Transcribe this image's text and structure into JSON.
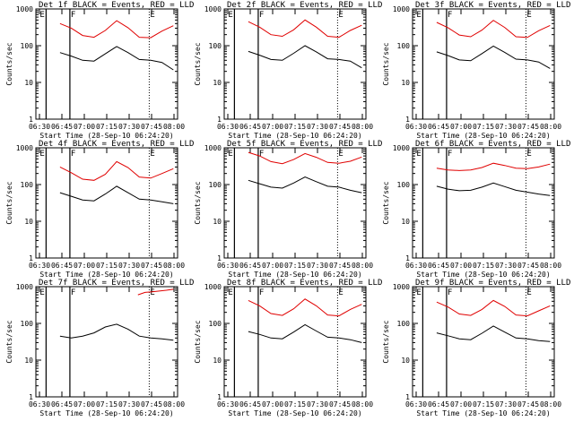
{
  "chart_data": [
    {
      "type": "line",
      "title": "Det 1f BLACK = Events, RED = LLD",
      "xlabel": "Start Time (28-Sep-10 06:24:20)",
      "ylabel": "Counts/sec",
      "x_ticks": [
        "06:30",
        "06:45",
        "07:00",
        "07:15",
        "07:30",
        "07:45",
        "08:00"
      ],
      "y_ticks": [
        "1",
        "10",
        "100",
        "1000"
      ],
      "ylim": [
        1,
        1000
      ],
      "y_scale": "log",
      "markers": [
        {
          "label": "E",
          "position": "left"
        },
        {
          "label": "F",
          "position": "left"
        },
        {
          "label": "E",
          "position": "right"
        }
      ],
      "series": [
        {
          "color": "#e00000",
          "values": [
            400,
            300,
            190,
            170,
            260,
            480,
            310,
            170,
            165,
            250,
            350
          ]
        },
        {
          "color": "#000000",
          "values": [
            65,
            52,
            40,
            38,
            60,
            95,
            65,
            42,
            40,
            35,
            22
          ]
        }
      ]
    },
    {
      "type": "line",
      "title": "Det 2f BLACK = Events, RED = LLD",
      "xlabel": "Start Time (28-Sep-10 06:24:20)",
      "ylabel": "Counts/sec",
      "x_ticks": [
        "06:30",
        "06:45",
        "07:00",
        "07:15",
        "07:30",
        "07:45",
        "08:00"
      ],
      "y_ticks": [
        "1",
        "10",
        "100",
        "1000"
      ],
      "ylim": [
        1,
        1000
      ],
      "y_scale": "log",
      "markers": [
        {
          "label": "E",
          "position": "left"
        },
        {
          "label": "F",
          "position": "left"
        },
        {
          "label": "E",
          "position": "right"
        }
      ],
      "series": [
        {
          "color": "#e00000",
          "values": [
            450,
            320,
            200,
            180,
            270,
            500,
            320,
            180,
            170,
            260,
            360
          ]
        },
        {
          "color": "#000000",
          "values": [
            70,
            55,
            42,
            40,
            62,
            100,
            68,
            44,
            42,
            38,
            25
          ]
        }
      ]
    },
    {
      "type": "line",
      "title": "Det 3f BLACK = Events, RED = LLD",
      "xlabel": "Start Time (28-Sep-10 06:24:20)",
      "ylabel": "Counts/sec",
      "x_ticks": [
        "06:30",
        "06:45",
        "07:00",
        "07:15",
        "07:30",
        "07:45",
        "08:00"
      ],
      "y_ticks": [
        "1",
        "10",
        "100",
        "1000"
      ],
      "ylim": [
        1,
        1000
      ],
      "y_scale": "log",
      "markers": [
        {
          "label": "E",
          "position": "left"
        },
        {
          "label": "F",
          "position": "left"
        },
        {
          "label": "E",
          "position": "right"
        }
      ],
      "series": [
        {
          "color": "#e00000",
          "values": [
            430,
            310,
            195,
            175,
            265,
            490,
            315,
            175,
            168,
            255,
            355
          ]
        },
        {
          "color": "#000000",
          "values": [
            68,
            54,
            41,
            39,
            61,
            98,
            66,
            43,
            41,
            36,
            24
          ]
        }
      ]
    },
    {
      "type": "line",
      "title": "Det 4f BLACK = Events, RED = LLD",
      "xlabel": "Start Time (28-Sep-10 06:24:20)",
      "ylabel": "Counts/sec",
      "x_ticks": [
        "06:30",
        "06:45",
        "07:00",
        "07:15",
        "07:30",
        "07:45",
        "08:00"
      ],
      "y_ticks": [
        "1",
        "10",
        "100",
        "1000"
      ],
      "ylim": [
        1,
        1000
      ],
      "y_scale": "log",
      "markers": [
        {
          "label": "E",
          "position": "left"
        },
        {
          "label": "F",
          "position": "left"
        },
        {
          "label": "E",
          "position": "right"
        }
      ],
      "series": [
        {
          "color": "#e00000",
          "values": [
            300,
            210,
            140,
            130,
            190,
            420,
            290,
            160,
            150,
            200,
            270
          ]
        },
        {
          "color": "#000000",
          "values": [
            60,
            48,
            38,
            36,
            55,
            90,
            60,
            40,
            38,
            34,
            30
          ]
        }
      ]
    },
    {
      "type": "line",
      "title": "Det 5f BLACK = Events, RED = LLD",
      "xlabel": "Start Time (28-Sep-10 06:24:20)",
      "ylabel": "Counts/sec",
      "x_ticks": [
        "06:30",
        "06:45",
        "07:00",
        "07:15",
        "07:30",
        "07:45",
        "08:00"
      ],
      "y_ticks": [
        "1",
        "10",
        "100",
        "1000"
      ],
      "ylim": [
        1,
        1000
      ],
      "y_scale": "log",
      "markers": [
        {
          "label": "E",
          "position": "left"
        },
        {
          "label": "F",
          "position": "left"
        },
        {
          "label": "E",
          "position": "right"
        }
      ],
      "series": [
        {
          "color": "#e00000",
          "values": [
            750,
            600,
            420,
            370,
            480,
            700,
            550,
            400,
            380,
            430,
            560
          ]
        },
        {
          "color": "#000000",
          "values": [
            130,
            105,
            85,
            80,
            110,
            160,
            120,
            90,
            85,
            70,
            60
          ]
        }
      ]
    },
    {
      "type": "line",
      "title": "Det 6f BLACK = Events, RED = LLD",
      "xlabel": "Start Time (28-Sep-10 06:24:20)",
      "ylabel": "Counts/sec",
      "x_ticks": [
        "06:30",
        "06:45",
        "07:00",
        "07:15",
        "07:30",
        "07:45",
        "08:00"
      ],
      "y_ticks": [
        "1",
        "10",
        "100",
        "1000"
      ],
      "ylim": [
        1,
        1000
      ],
      "y_scale": "log",
      "markers": [
        {
          "label": "E",
          "position": "left"
        },
        {
          "label": "F",
          "position": "left"
        },
        {
          "label": "E",
          "position": "right"
        }
      ],
      "series": [
        {
          "color": "#e00000",
          "values": [
            280,
            250,
            240,
            250,
            290,
            380,
            330,
            280,
            270,
            300,
            360
          ]
        },
        {
          "color": "#000000",
          "values": [
            90,
            75,
            68,
            70,
            85,
            110,
            88,
            70,
            62,
            55,
            50
          ]
        }
      ]
    },
    {
      "type": "line",
      "title": "Det 7f BLACK = Events, RED = LLD",
      "xlabel": "Start Time (28-Sep-10 06:24:20)",
      "ylabel": "Counts/sec",
      "x_ticks": [
        "06:30",
        "06:45",
        "07:00",
        "07:15",
        "07:30",
        "07:45",
        "08:00"
      ],
      "y_ticks": [
        "1",
        "10",
        "100",
        "1000"
      ],
      "ylim": [
        1,
        1000
      ],
      "y_scale": "log",
      "markers": [
        {
          "label": "E",
          "position": "left"
        },
        {
          "label": "F",
          "position": "left"
        },
        {
          "label": "E",
          "position": "right"
        }
      ],
      "series": [
        {
          "color": "#e00000",
          "x_start_fraction": 0.72,
          "values": [
            600,
            700,
            720,
            760,
            800,
            850
          ]
        },
        {
          "color": "#000000",
          "values": [
            45,
            40,
            45,
            55,
            80,
            95,
            70,
            45,
            40,
            38,
            35
          ]
        }
      ]
    },
    {
      "type": "line",
      "title": "Det 8f BLACK = Events, RED = LLD",
      "xlabel": "Start Time (28-Sep-10 06:24:20)",
      "ylabel": "Counts/sec",
      "x_ticks": [
        "06:30",
        "06:45",
        "07:00",
        "07:15",
        "07:30",
        "07:45",
        "08:00"
      ],
      "y_ticks": [
        "1",
        "10",
        "100",
        "1000"
      ],
      "ylim": [
        1,
        1000
      ],
      "y_scale": "log",
      "markers": [
        {
          "label": "E",
          "position": "left"
        },
        {
          "label": "F",
          "position": "left"
        },
        {
          "label": "E",
          "position": "right"
        }
      ],
      "series": [
        {
          "color": "#e00000",
          "values": [
            420,
            300,
            185,
            165,
            250,
            460,
            300,
            170,
            160,
            240,
            330
          ]
        },
        {
          "color": "#000000",
          "values": [
            60,
            50,
            40,
            38,
            58,
            92,
            62,
            42,
            40,
            36,
            30
          ]
        }
      ]
    },
    {
      "type": "line",
      "title": "Det 9f BLACK = Events, RED = LLD",
      "xlabel": "Start Time (28-Sep-10 06:24:20)",
      "ylabel": "Counts/sec",
      "x_ticks": [
        "06:30",
        "06:45",
        "07:00",
        "07:15",
        "07:30",
        "07:45",
        "08:00"
      ],
      "y_ticks": [
        "1",
        "10",
        "100",
        "1000"
      ],
      "ylim": [
        1,
        1000
      ],
      "y_scale": "log",
      "markers": [
        {
          "label": "E",
          "position": "left"
        },
        {
          "label": "F",
          "position": "left"
        },
        {
          "label": "E",
          "position": "right"
        }
      ],
      "series": [
        {
          "color": "#e00000",
          "values": [
            380,
            280,
            180,
            165,
            240,
            420,
            290,
            170,
            160,
            220,
            300
          ]
        },
        {
          "color": "#000000",
          "values": [
            55,
            46,
            38,
            36,
            54,
            85,
            58,
            40,
            38,
            34,
            32
          ]
        }
      ]
    }
  ]
}
